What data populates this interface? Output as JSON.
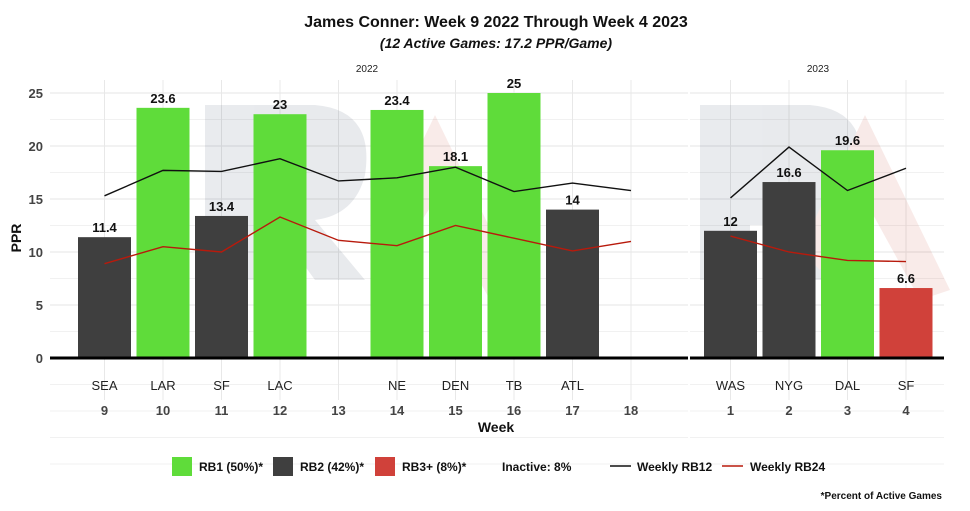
{
  "header": {
    "title": "James Conner: Week 9 2022 Through Week 4 2023",
    "subtitle": "(12 Active Games: 17.2 PPR/Game)"
  },
  "axis": {
    "ylabel": "PPR",
    "xlabel": "Week",
    "yticks": [
      "0",
      "5",
      "10",
      "15",
      "20",
      "25"
    ]
  },
  "legend": {
    "rb1": "RB1 (50%)*",
    "rb2": "RB2 (42%)*",
    "rb3": "RB3+ (8%)*",
    "inactive": "Inactive: 8%",
    "rb12": "Weekly RB12",
    "rb24": "Weekly RB24"
  },
  "footnote": "*Percent of Active Games",
  "colors": {
    "rb1": "#5fdc3a",
    "rb2": "#3f3f3f",
    "rb3": "#d0413a",
    "rb12_line": "#111111",
    "rb24_line": "#b81a0c"
  },
  "chart_data": [
    {
      "type": "bar",
      "panel_label": "2022",
      "ylim": [
        0,
        25
      ],
      "weeks": [
        "9",
        "10",
        "11",
        "12",
        "13",
        "14",
        "15",
        "16",
        "17",
        "18"
      ],
      "opponents": [
        "SEA",
        "LAR",
        "SF",
        "LAC",
        "",
        "NE",
        "DEN",
        "TB",
        "ATL",
        ""
      ],
      "values": [
        11.4,
        23.6,
        13.4,
        23,
        null,
        23.4,
        18.1,
        25,
        14,
        null
      ],
      "value_labels": [
        "11.4",
        "23.6",
        "13.4",
        "23",
        "",
        "23.4",
        "18.1",
        "25",
        "14",
        ""
      ],
      "tiers": [
        "RB2",
        "RB1",
        "RB2",
        "RB1",
        "",
        "RB1",
        "RB1",
        "RB1",
        "RB2",
        ""
      ],
      "series": [
        {
          "name": "Weekly RB12",
          "values": [
            15.3,
            17.7,
            17.6,
            18.8,
            16.7,
            17.0,
            18.0,
            15.7,
            16.5,
            15.8
          ]
        },
        {
          "name": "Weekly RB24",
          "values": [
            8.9,
            10.5,
            10.0,
            13.3,
            11.1,
            10.6,
            12.5,
            11.3,
            10.1,
            11.0
          ]
        }
      ]
    },
    {
      "type": "bar",
      "panel_label": "2023",
      "ylim": [
        0,
        25
      ],
      "weeks": [
        "1",
        "2",
        "3",
        "4"
      ],
      "opponents": [
        "WAS",
        "NYG",
        "DAL",
        "SF"
      ],
      "values": [
        12,
        16.6,
        19.6,
        6.6
      ],
      "value_labels": [
        "12",
        "16.6",
        "19.6",
        "6.6"
      ],
      "tiers": [
        "RB2",
        "RB2",
        "RB1",
        "RB3"
      ],
      "series": [
        {
          "name": "Weekly RB12",
          "values": [
            15.1,
            19.9,
            15.8,
            17.9
          ]
        },
        {
          "name": "Weekly RB24",
          "values": [
            11.5,
            10.0,
            9.2,
            9.1
          ]
        }
      ]
    }
  ]
}
